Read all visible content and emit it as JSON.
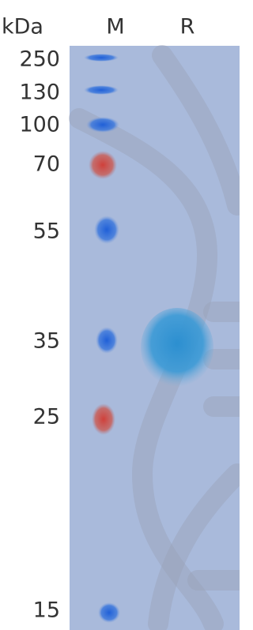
{
  "header": {
    "unit": "kDa",
    "lanes": [
      "M",
      "R"
    ]
  },
  "markers": [
    "250",
    "130",
    "100",
    "70",
    "55",
    "35",
    "25",
    "15"
  ]
}
